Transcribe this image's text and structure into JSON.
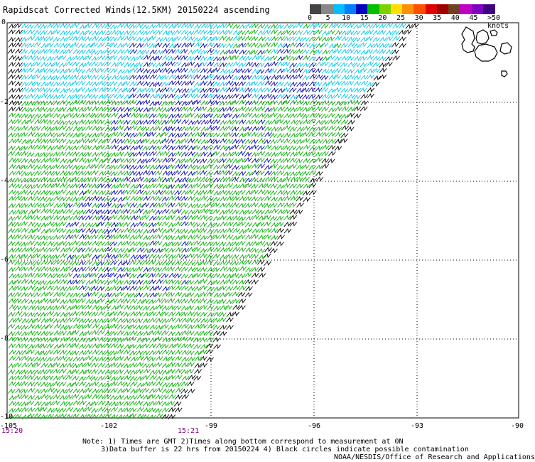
{
  "title": "Rapidscat Corrected Winds(12.5KM) 20150224 ascending",
  "colorbar": {
    "labels": [
      "0",
      "5",
      "10",
      "15",
      "20",
      "25",
      "30",
      "35",
      "40",
      "45",
      ">50 knots"
    ],
    "colors": [
      "#444444",
      "#888888",
      "#00bfff",
      "#0080ff",
      "#0000c0",
      "#00c000",
      "#80d000",
      "#ffe000",
      "#ff9000",
      "#ff5000",
      "#e00000",
      "#a00000",
      "#704020",
      "#c000c0",
      "#8000c0",
      "#400080"
    ]
  },
  "axes": {
    "lat_labels": [
      "0",
      "-2",
      "-4",
      "-6",
      "-8",
      "-10"
    ],
    "lon_labels": [
      "-105",
      "-102",
      "-99",
      "-96",
      "-93",
      "-90"
    ]
  },
  "times": {
    "start": "15:20",
    "end": "15:21"
  },
  "notes": {
    "line1": "Note: 1) Times are GMT 2)Times along bottom correspond to measurement at 0N",
    "line2": "3)Data buffer is 22 hrs from 20150224 4) Black circles indicate possible contamination",
    "line3": "NOAA/NESDIS/Office of Research and Applications"
  },
  "wind_colors": {
    "light": "#00c8e8",
    "mid": "#0000b0",
    "strong": "#00b000",
    "calm": "#000000"
  }
}
